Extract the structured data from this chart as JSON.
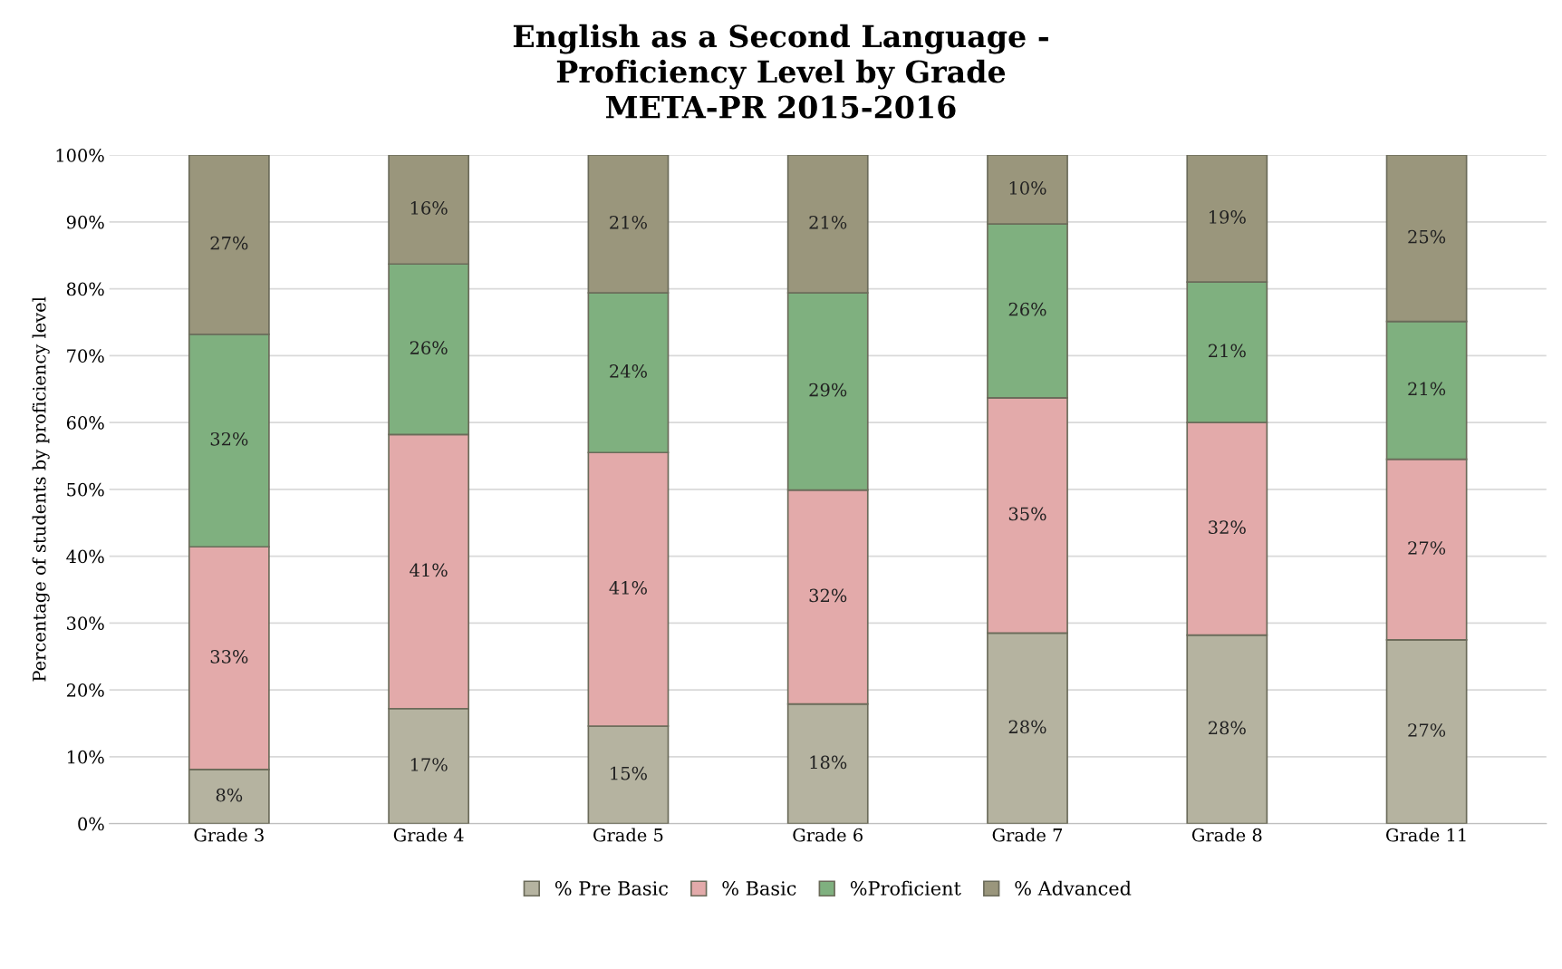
{
  "chart_data": {
    "type": "bar",
    "stacked": true,
    "title": "English as a Second Language -\nProficiency Level by Grade\nMETA-PR 2015-2016",
    "ylabel": "Percentage of students by proficiency level",
    "categories": [
      "Grade 3",
      "Grade 4",
      "Grade 5",
      "Grade 6",
      "Grade 7",
      "Grade 8",
      "Grade 11"
    ],
    "series": [
      {
        "name": "% Pre Basic",
        "color": "#b5b3a0",
        "values": [
          8.1,
          17.2,
          14.6,
          17.9,
          28.5,
          28.2,
          27.5
        ],
        "value_labels": [
          "8%",
          "17%",
          "15%",
          "18%",
          "28%",
          "28%",
          "27%"
        ]
      },
      {
        "name": "% Basic",
        "color": "#e3aaaa",
        "values": [
          33.3,
          41.0,
          40.9,
          32.0,
          35.2,
          31.8,
          27.0
        ],
        "value_labels": [
          "33%",
          "41%",
          "41%",
          "32%",
          "35%",
          "32%",
          "27%"
        ]
      },
      {
        "name": "%Proficient",
        "color": "#7fb07f",
        "values": [
          31.8,
          25.5,
          23.9,
          29.5,
          26.0,
          21.0,
          20.6
        ],
        "value_labels": [
          "32%",
          "26%",
          "24%",
          "29%",
          "26%",
          "21%",
          "21%"
        ]
      },
      {
        "name": "% Advanced",
        "color": "#9a967c",
        "values": [
          26.8,
          16.3,
          20.6,
          20.6,
          10.3,
          19.0,
          24.9
        ],
        "value_labels": [
          "27%",
          "16%",
          "21%",
          "21%",
          "10%",
          "19%",
          "25%"
        ]
      }
    ],
    "ylim": [
      0,
      100
    ],
    "yticks": [
      {
        "value": 0,
        "label": "0%"
      },
      {
        "value": 10,
        "label": "10%"
      },
      {
        "value": 20,
        "label": "20%"
      },
      {
        "value": 30,
        "label": "30%"
      },
      {
        "value": 40,
        "label": "40%"
      },
      {
        "value": 50,
        "label": "50%"
      },
      {
        "value": 60,
        "label": "60%"
      },
      {
        "value": 70,
        "label": "70%"
      },
      {
        "value": 80,
        "label": "80%"
      },
      {
        "value": 90,
        "label": "90%"
      },
      {
        "value": 100,
        "label": "100%"
      }
    ],
    "grid": "y",
    "legend": "bottom"
  }
}
